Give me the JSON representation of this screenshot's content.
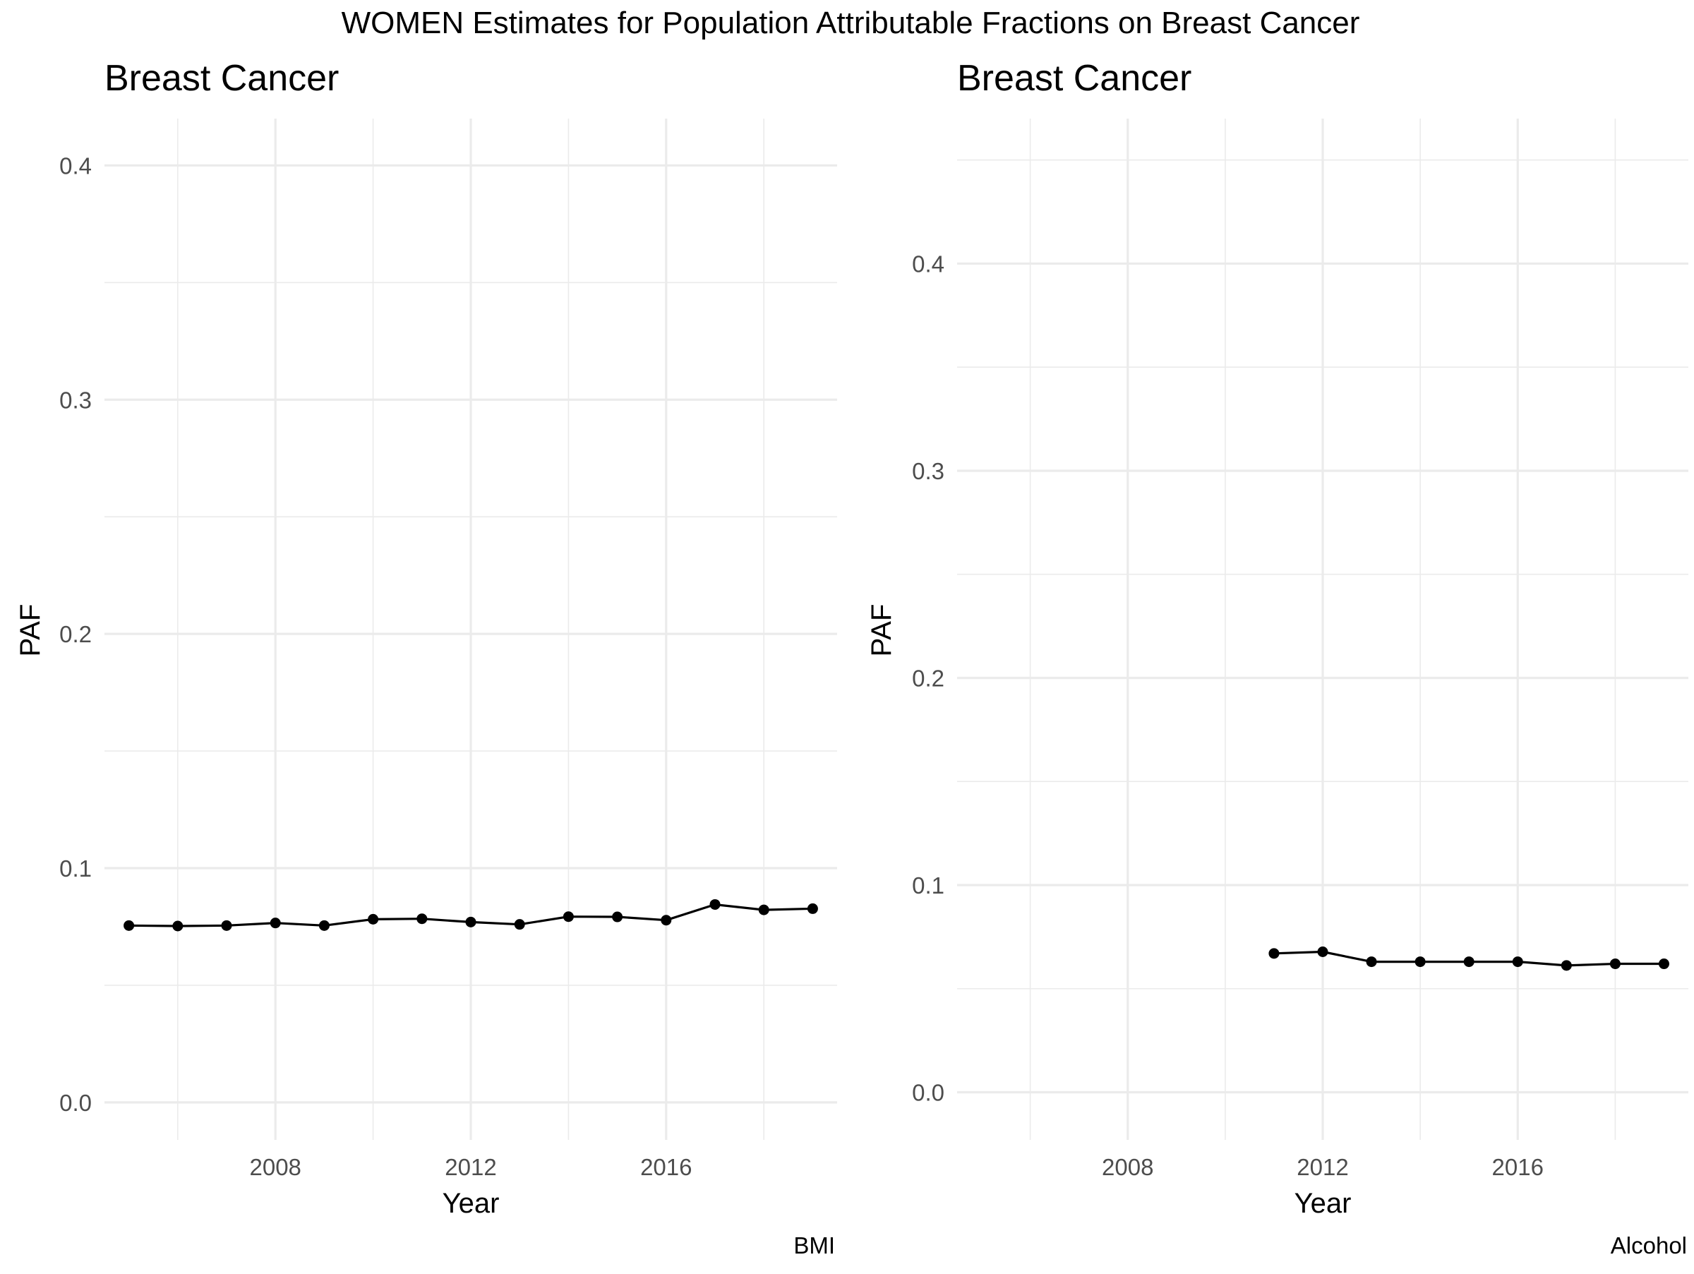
{
  "figure": {
    "title": "WOMEN Estimates for Population Attributable Fractions on Breast Cancer"
  },
  "chart_data": [
    {
      "type": "line",
      "title": "Breast Cancer",
      "xlabel": "Year",
      "ylabel": "PAF",
      "caption": "BMI",
      "xlim": [
        2004.5,
        2019.5
      ],
      "ylim": [
        -0.016,
        0.42
      ],
      "x_ticks": [
        2008,
        2012,
        2016
      ],
      "x_tick_labels": [
        "2008",
        "2012",
        "2016"
      ],
      "y_ticks": [
        0.0,
        0.1,
        0.2,
        0.3,
        0.4
      ],
      "y_tick_labels": [
        "0.0",
        "0.1",
        "0.2",
        "0.3",
        "0.4"
      ],
      "grid": true,
      "legend": "none",
      "series": [
        {
          "x": [
            2005,
            2006,
            2007,
            2008,
            2009,
            2010,
            2011,
            2012,
            2013,
            2014,
            2015,
            2016,
            2017,
            2018,
            2019
          ],
          "y": [
            0.0755,
            0.0753,
            0.0755,
            0.0766,
            0.0755,
            0.0782,
            0.0784,
            0.077,
            0.076,
            0.0793,
            0.0792,
            0.0778,
            0.0845,
            0.0822,
            0.0827
          ],
          "color": "#000000"
        }
      ]
    },
    {
      "type": "line",
      "title": "Breast Cancer",
      "xlabel": "Year",
      "ylabel": "PAF",
      "caption": "Alcohol",
      "xlim": [
        2004.5,
        2019.5
      ],
      "ylim": [
        -0.023,
        0.47
      ],
      "x_ticks": [
        2008,
        2012,
        2016
      ],
      "x_tick_labels": [
        "2008",
        "2012",
        "2016"
      ],
      "y_ticks": [
        0.0,
        0.1,
        0.2,
        0.3,
        0.4
      ],
      "y_tick_labels": [
        "0.0",
        "0.1",
        "0.2",
        "0.3",
        "0.4"
      ],
      "grid": true,
      "legend": "none",
      "series": [
        {
          "x": [
            2011,
            2012,
            2013,
            2014,
            2015,
            2016,
            2017,
            2018,
            2019
          ],
          "y": [
            0.067,
            0.0678,
            0.063,
            0.063,
            0.063,
            0.063,
            0.0612,
            0.062,
            0.062
          ],
          "color": "#000000"
        }
      ]
    }
  ]
}
